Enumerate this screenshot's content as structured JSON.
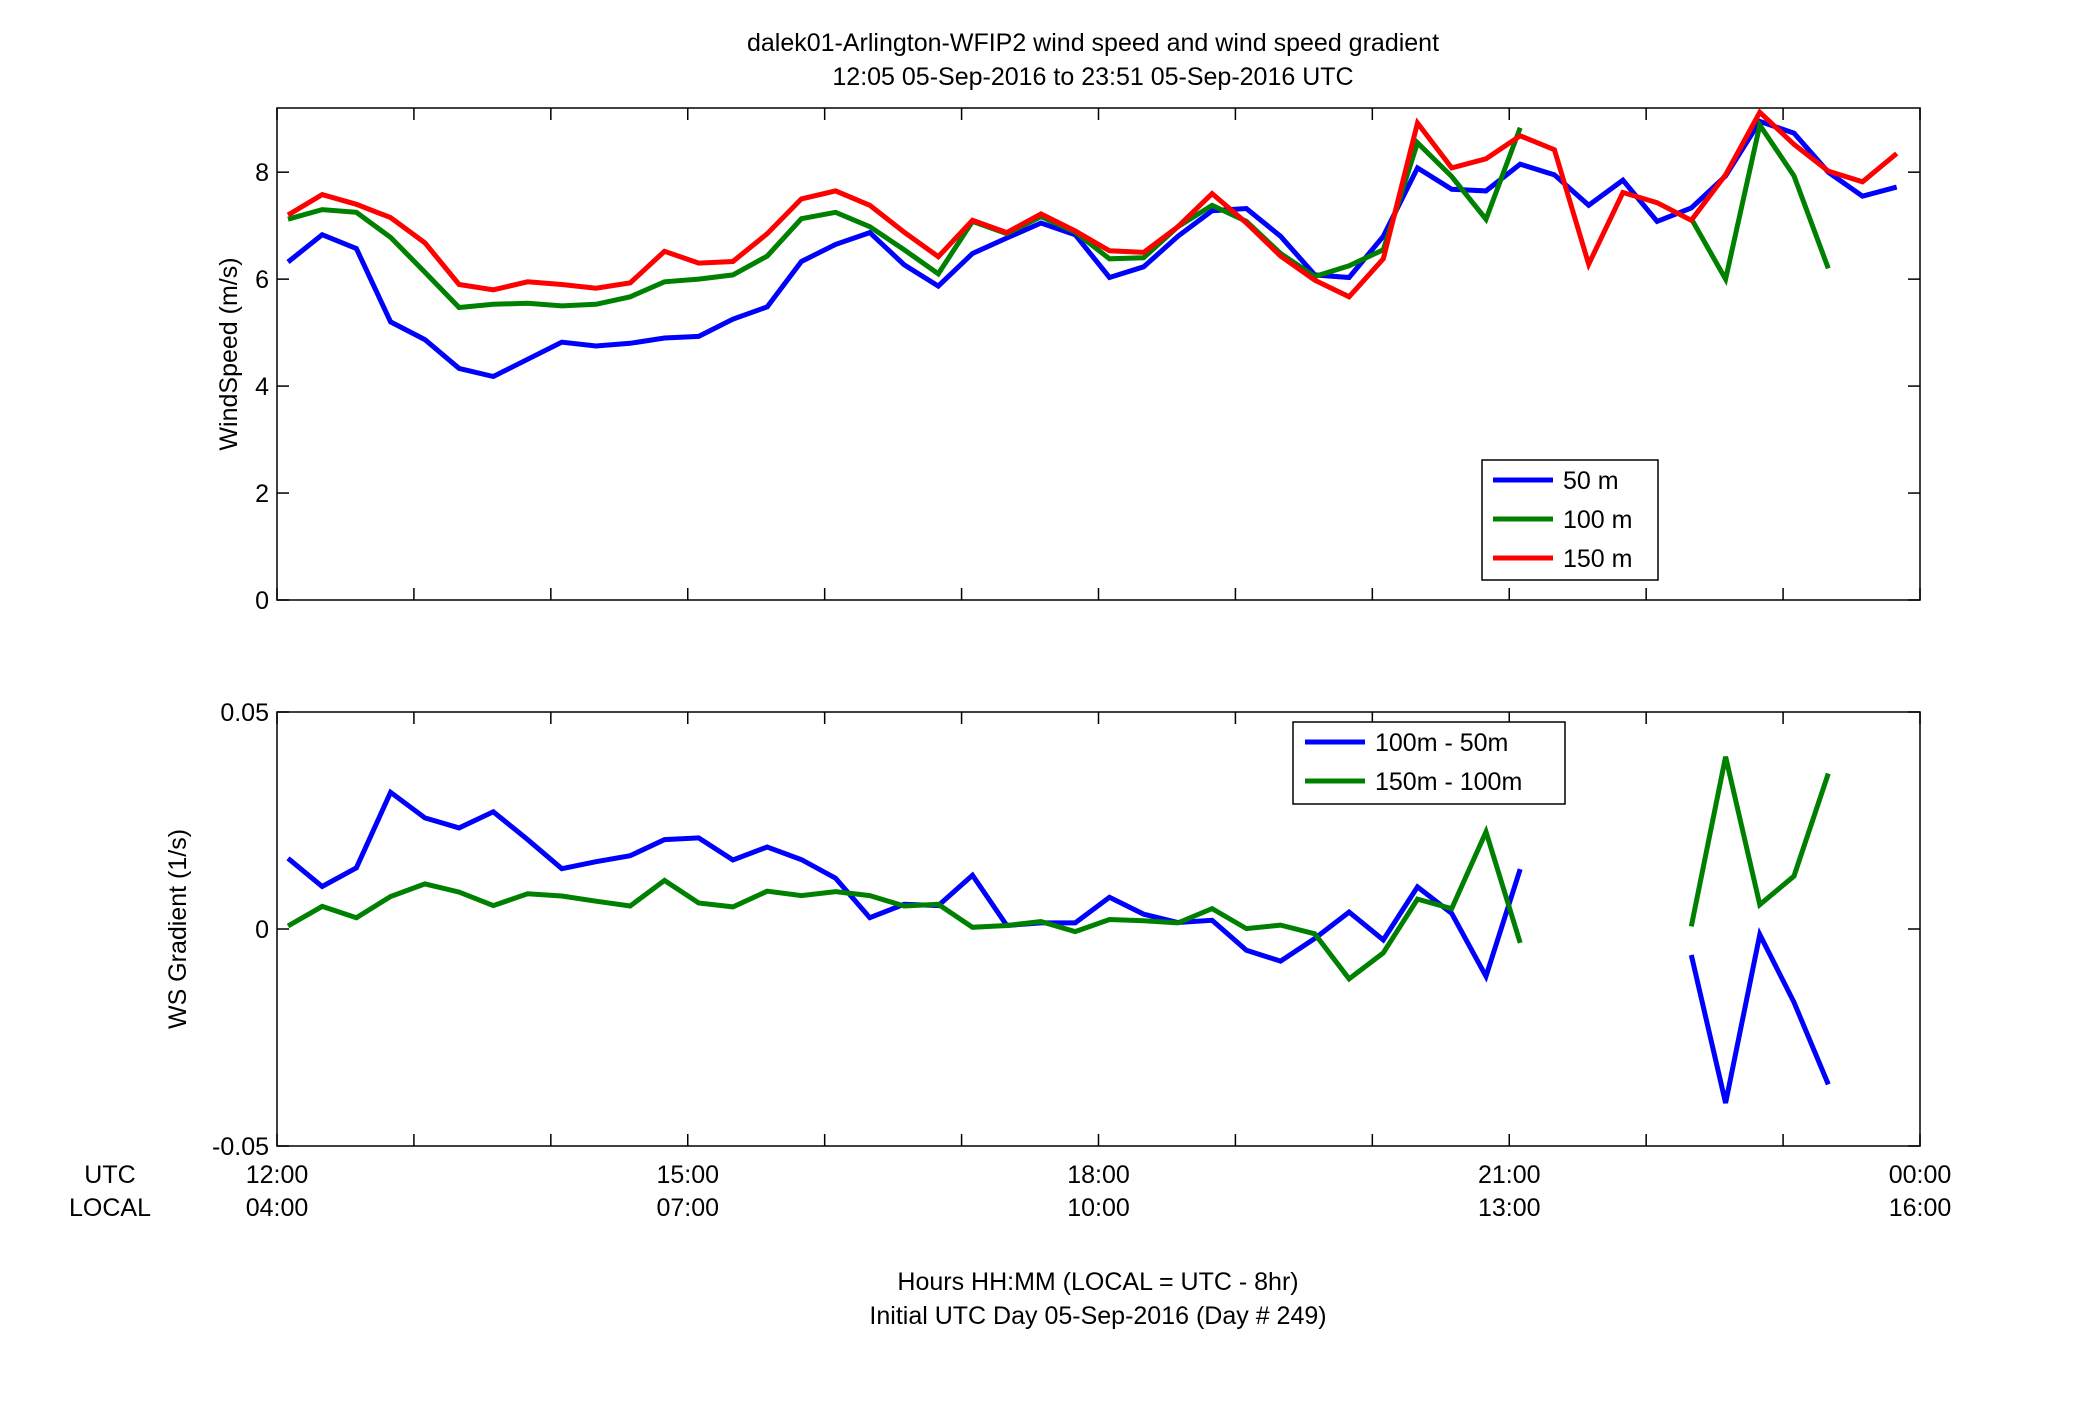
{
  "title_line1": "dalek01-Arlington-WFIP2  wind speed and wind speed gradient",
  "title_line2": "12:05 05-Sep-2016 to 23:51 05-Sep-2016  UTC",
  "xlabel_line1": "Hours HH:MM  (LOCAL = UTC - 8hr)",
  "xlabel_line2": "Initial UTC Day 05-Sep-2016 (Day # 249)",
  "row_label_utc": "UTC",
  "row_label_local": "LOCAL",
  "chart_data": [
    {
      "type": "line",
      "ylabel": "WindSpeed (m/s)",
      "xlim": [
        12.0,
        24.0
      ],
      "ylim": [
        0,
        9.2
      ],
      "yticks": [
        0,
        2,
        4,
        6,
        8
      ],
      "ytick_labels": [
        "0",
        "2",
        "4",
        "6",
        "8"
      ],
      "xticks": [
        12,
        15,
        18,
        21,
        24
      ],
      "grid": false,
      "legend_position": "lower-right",
      "series": [
        {
          "name": "50 m",
          "color": "#0000ff",
          "points": [
            [
              12.08,
              6.32
            ],
            [
              12.33,
              6.83
            ],
            [
              12.58,
              6.57
            ],
            [
              12.83,
              5.2
            ],
            [
              13.08,
              4.87
            ],
            [
              13.33,
              4.33
            ],
            [
              13.58,
              4.18
            ],
            [
              13.83,
              4.5
            ],
            [
              14.08,
              4.82
            ],
            [
              14.33,
              4.75
            ],
            [
              14.58,
              4.8
            ],
            [
              14.83,
              4.9
            ],
            [
              15.08,
              4.93
            ],
            [
              15.33,
              5.25
            ],
            [
              15.58,
              5.48
            ],
            [
              15.83,
              6.33
            ],
            [
              16.08,
              6.65
            ],
            [
              16.33,
              6.87
            ],
            [
              16.58,
              6.27
            ],
            [
              16.83,
              5.87
            ],
            [
              17.08,
              6.48
            ],
            [
              17.33,
              6.77
            ],
            [
              17.58,
              7.05
            ],
            [
              17.83,
              6.83
            ],
            [
              18.08,
              6.03
            ],
            [
              18.33,
              6.23
            ],
            [
              18.58,
              6.8
            ],
            [
              18.83,
              7.28
            ],
            [
              19.08,
              7.32
            ],
            [
              19.33,
              6.8
            ],
            [
              19.58,
              6.08
            ],
            [
              19.83,
              6.03
            ],
            [
              20.08,
              6.8
            ],
            [
              20.33,
              8.08
            ],
            [
              20.58,
              7.68
            ],
            [
              20.83,
              7.65
            ],
            [
              21.08,
              8.15
            ],
            [
              21.33,
              7.95
            ],
            [
              21.58,
              7.38
            ],
            [
              21.83,
              7.85
            ],
            [
              22.08,
              7.08
            ],
            [
              22.33,
              7.33
            ],
            [
              22.58,
              7.93
            ],
            [
              22.83,
              8.95
            ],
            [
              23.08,
              8.73
            ],
            [
              23.33,
              8.0
            ],
            [
              23.58,
              7.55
            ],
            [
              23.83,
              7.72
            ]
          ]
        },
        {
          "name": "100 m",
          "color": "#008000",
          "points": [
            [
              12.08,
              7.12
            ],
            [
              12.33,
              7.3
            ],
            [
              12.58,
              7.25
            ],
            [
              12.83,
              6.78
            ],
            [
              13.08,
              6.13
            ],
            [
              13.33,
              5.47
            ],
            [
              13.58,
              5.53
            ],
            [
              13.83,
              5.55
            ],
            [
              14.08,
              5.5
            ],
            [
              14.33,
              5.53
            ],
            [
              14.58,
              5.67
            ],
            [
              14.83,
              5.95
            ],
            [
              15.08,
              6.0
            ],
            [
              15.33,
              6.08
            ],
            [
              15.58,
              6.43
            ],
            [
              15.83,
              7.13
            ],
            [
              16.08,
              7.25
            ],
            [
              16.33,
              6.98
            ],
            [
              16.58,
              6.55
            ],
            [
              16.83,
              6.1
            ],
            [
              17.08,
              7.08
            ],
            [
              17.33,
              6.85
            ],
            [
              17.58,
              7.17
            ],
            [
              17.83,
              6.88
            ],
            [
              18.08,
              6.38
            ],
            [
              18.33,
              6.4
            ],
            [
              18.58,
              6.98
            ],
            [
              18.83,
              7.38
            ],
            [
              19.08,
              7.08
            ],
            [
              19.33,
              6.48
            ],
            [
              19.58,
              6.05
            ],
            [
              19.83,
              6.25
            ],
            [
              20.08,
              6.55
            ],
            [
              20.33,
              8.55
            ],
            [
              20.58,
              7.92
            ],
            [
              20.83,
              7.12
            ],
            [
              21.08,
              8.83
            ],
            null,
            null,
            null,
            null,
            [
              22.33,
              7.13
            ],
            [
              22.58,
              6.0
            ],
            [
              22.83,
              8.88
            ],
            [
              23.08,
              7.93
            ],
            [
              23.33,
              6.2
            ]
          ]
        },
        {
          "name": "150 m",
          "color": "#ff0000",
          "points": [
            [
              12.08,
              7.2
            ],
            [
              12.33,
              7.58
            ],
            [
              12.58,
              7.4
            ],
            [
              12.83,
              7.15
            ],
            [
              13.08,
              6.68
            ],
            [
              13.33,
              5.9
            ],
            [
              13.58,
              5.8
            ],
            [
              13.83,
              5.95
            ],
            [
              14.08,
              5.9
            ],
            [
              14.33,
              5.83
            ],
            [
              14.58,
              5.93
            ],
            [
              14.83,
              6.52
            ],
            [
              15.08,
              6.3
            ],
            [
              15.33,
              6.33
            ],
            [
              15.58,
              6.85
            ],
            [
              15.83,
              7.5
            ],
            [
              16.08,
              7.65
            ],
            [
              16.33,
              7.38
            ],
            [
              16.58,
              6.88
            ],
            [
              16.83,
              6.42
            ],
            [
              17.08,
              7.1
            ],
            [
              17.33,
              6.87
            ],
            [
              17.58,
              7.22
            ],
            [
              17.83,
              6.9
            ],
            [
              18.08,
              6.53
            ],
            [
              18.33,
              6.5
            ],
            [
              18.58,
              6.98
            ],
            [
              18.83,
              7.6
            ],
            [
              19.08,
              7.05
            ],
            [
              19.33,
              6.43
            ],
            [
              19.58,
              5.98
            ],
            [
              19.83,
              5.67
            ],
            [
              20.08,
              6.38
            ],
            [
              20.33,
              8.92
            ],
            [
              20.58,
              8.08
            ],
            [
              20.83,
              8.25
            ],
            [
              21.08,
              8.68
            ],
            [
              21.33,
              8.42
            ],
            [
              21.58,
              6.28
            ],
            [
              21.83,
              7.62
            ],
            [
              22.08,
              7.43
            ],
            [
              22.33,
              7.1
            ],
            [
              22.58,
              7.95
            ],
            [
              22.83,
              9.12
            ],
            [
              23.08,
              8.52
            ],
            [
              23.33,
              8.02
            ],
            [
              23.58,
              7.82
            ],
            [
              23.83,
              8.35
            ]
          ]
        }
      ]
    },
    {
      "type": "line",
      "ylabel": "WS Gradient (1/s)",
      "xlim": [
        12.0,
        24.0
      ],
      "ylim": [
        -0.05,
        0.05
      ],
      "yticks": [
        -0.05,
        0,
        0.05
      ],
      "ytick_labels": [
        "-0.05",
        "0",
        "0.05"
      ],
      "xticks": [
        12,
        15,
        18,
        21,
        24
      ],
      "xtick_labels_utc": [
        "12:00",
        "15:00",
        "18:00",
        "21:00",
        "00:00"
      ],
      "xtick_labels_local": [
        "04:00",
        "07:00",
        "10:00",
        "13:00",
        "16:00"
      ],
      "grid": false,
      "legend_position": "top-center",
      "series": [
        {
          "name": "100m - 50m",
          "color": "#0000ff",
          "points": [
            [
              12.08,
              0.0163
            ],
            [
              12.33,
              0.0098
            ],
            [
              12.58,
              0.0141
            ],
            [
              12.83,
              0.0315
            ],
            [
              13.08,
              0.0256
            ],
            [
              13.33,
              0.0233
            ],
            [
              13.58,
              0.027
            ],
            [
              13.83,
              0.0206
            ],
            [
              14.08,
              0.0139
            ],
            [
              14.33,
              0.0155
            ],
            [
              14.58,
              0.0169
            ],
            [
              14.83,
              0.0206
            ],
            [
              15.08,
              0.021
            ],
            [
              15.33,
              0.0159
            ],
            [
              15.58,
              0.0189
            ],
            [
              15.83,
              0.016
            ],
            [
              16.08,
              0.0117
            ],
            [
              16.33,
              0.0026
            ],
            [
              16.58,
              0.0057
            ],
            [
              16.83,
              0.0054
            ],
            [
              17.08,
              0.0124
            ],
            [
              17.33,
              0.0008
            ],
            [
              17.58,
              0.0014
            ],
            [
              17.83,
              0.0014
            ],
            [
              18.08,
              0.0073
            ],
            [
              18.33,
              0.0034
            ],
            [
              18.58,
              0.0015
            ],
            [
              18.83,
              0.002
            ],
            [
              19.08,
              -0.0049
            ],
            [
              19.33,
              -0.0074
            ],
            [
              19.58,
              -0.0022
            ],
            [
              19.83,
              0.0039
            ],
            [
              20.08,
              -0.0025
            ],
            [
              20.33,
              0.0097
            ],
            [
              20.58,
              0.0036
            ],
            [
              20.83,
              -0.0109
            ],
            [
              21.08,
              0.0138
            ],
            null,
            null,
            null,
            null,
            [
              22.33,
              -0.006
            ],
            [
              22.58,
              -0.0401
            ],
            [
              22.83,
              -0.0013
            ],
            [
              23.08,
              -0.0169
            ],
            [
              23.33,
              -0.0358
            ]
          ]
        },
        {
          "name": "150m - 100m",
          "color": "#008000",
          "points": [
            [
              12.08,
              0.0007
            ],
            [
              12.33,
              0.0052
            ],
            [
              12.58,
              0.0026
            ],
            [
              12.83,
              0.0075
            ],
            [
              13.08,
              0.0104
            ],
            [
              13.33,
              0.0085
            ],
            [
              13.58,
              0.0054
            ],
            [
              13.83,
              0.0081
            ],
            [
              14.08,
              0.0076
            ],
            [
              14.33,
              0.0064
            ],
            [
              14.58,
              0.0053
            ],
            [
              14.83,
              0.0112
            ],
            [
              15.08,
              0.006
            ],
            [
              15.33,
              0.0051
            ],
            [
              15.58,
              0.0087
            ],
            [
              15.83,
              0.0077
            ],
            [
              16.08,
              0.0086
            ],
            [
              16.33,
              0.0077
            ],
            [
              16.58,
              0.0053
            ],
            [
              16.83,
              0.0057
            ],
            [
              17.08,
              0.0004
            ],
            [
              17.33,
              0.0008
            ],
            [
              17.58,
              0.0017
            ],
            [
              17.83,
              -0.0006
            ],
            [
              18.08,
              0.0022
            ],
            [
              18.33,
              0.0019
            ],
            [
              18.58,
              0.0014
            ],
            [
              18.83,
              0.0047
            ],
            [
              19.08,
              0.0001
            ],
            [
              19.33,
              0.0009
            ],
            [
              19.58,
              -0.0011
            ],
            [
              19.83,
              -0.0115
            ],
            [
              20.08,
              -0.0055
            ],
            [
              20.33,
              0.0069
            ],
            [
              20.58,
              0.0047
            ],
            [
              20.83,
              0.0224
            ],
            [
              21.08,
              -0.0032
            ],
            null,
            null,
            null,
            null,
            [
              22.33,
              0.0006
            ],
            [
              22.58,
              0.0397
            ],
            [
              22.83,
              0.0056
            ],
            [
              23.08,
              0.0122
            ],
            [
              23.33,
              0.0358
            ]
          ]
        }
      ]
    }
  ]
}
